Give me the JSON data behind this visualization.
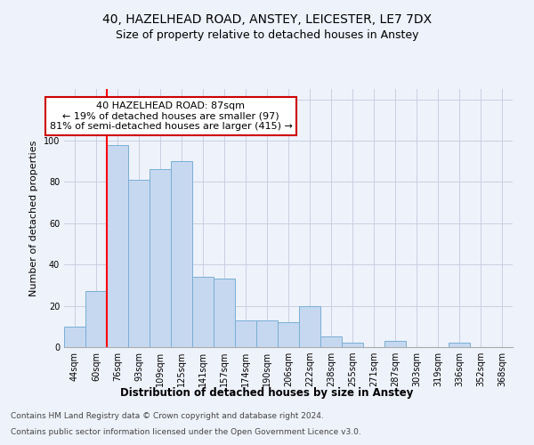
{
  "title1": "40, HAZELHEAD ROAD, ANSTEY, LEICESTER, LE7 7DX",
  "title2": "Size of property relative to detached houses in Anstey",
  "xlabel": "Distribution of detached houses by size in Anstey",
  "ylabel": "Number of detached properties",
  "categories": [
    "44sqm",
    "60sqm",
    "76sqm",
    "93sqm",
    "109sqm",
    "125sqm",
    "141sqm",
    "157sqm",
    "174sqm",
    "190sqm",
    "206sqm",
    "222sqm",
    "238sqm",
    "255sqm",
    "271sqm",
    "287sqm",
    "303sqm",
    "319sqm",
    "336sqm",
    "352sqm",
    "368sqm"
  ],
  "values": [
    10,
    27,
    98,
    81,
    86,
    90,
    34,
    33,
    13,
    13,
    12,
    20,
    5,
    2,
    0,
    3,
    0,
    0,
    2,
    0,
    0
  ],
  "bar_color": "#c5d8f0",
  "bar_edge_color": "#7aafd4",
  "annotation_line1": "40 HAZELHEAD ROAD: 87sqm",
  "annotation_line2": "← 19% of detached houses are smaller (97)",
  "annotation_line3": "81% of semi-detached houses are larger (415) →",
  "annotation_box_color": "#ffffff",
  "annotation_box_edge_color": "#cc0000",
  "property_line_x": 2.0,
  "ylim": [
    0,
    125
  ],
  "yticks": [
    0,
    20,
    40,
    60,
    80,
    100,
    120
  ],
  "footer1": "Contains HM Land Registry data © Crown copyright and database right 2024.",
  "footer2": "Contains public sector information licensed under the Open Government Licence v3.0.",
  "background_color": "#eef2fb",
  "grid_color": "#c8cfe0",
  "title1_fontsize": 10,
  "title2_fontsize": 9,
  "xlabel_fontsize": 8.5,
  "ylabel_fontsize": 8,
  "tick_fontsize": 7,
  "footer_fontsize": 6.5,
  "annot_fontsize": 8
}
